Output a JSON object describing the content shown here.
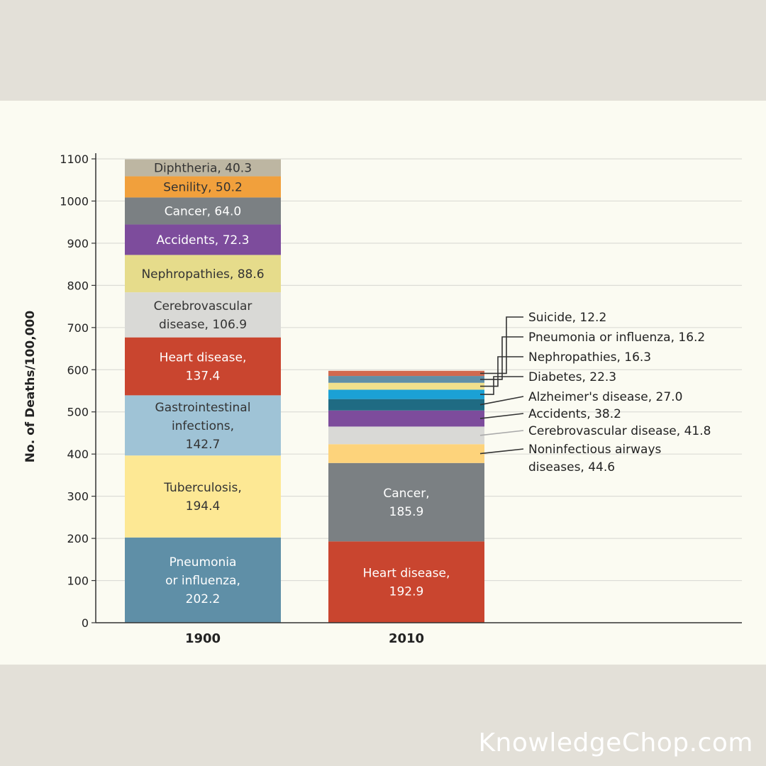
{
  "watermark": "KnowledgeChop.com",
  "chart_data": {
    "type": "bar",
    "stacked": true,
    "title": "",
    "xlabel": "",
    "ylabel": "No. of Deaths/100,000",
    "ylim": [
      0,
      1100
    ],
    "yticks": [
      0,
      100,
      200,
      300,
      400,
      500,
      600,
      700,
      800,
      900,
      1000,
      1100
    ],
    "grid": true,
    "categories": [
      "1900",
      "2010"
    ],
    "stacks": [
      {
        "category": "1900",
        "segments": [
          {
            "name": "Pneumonia or influenza",
            "value": 202.2,
            "label": [
              "Pneumonia",
              "or influenza,",
              "202.2"
            ],
            "color": "#5f8fa7",
            "text_color": "#ffffff"
          },
          {
            "name": "Tuberculosis",
            "value": 194.4,
            "label": [
              "Tuberculosis,",
              "194.4"
            ],
            "color": "#fde894",
            "text_color": "#333333"
          },
          {
            "name": "Gastrointestinal infections",
            "value": 142.7,
            "label": [
              "Gastrointestinal",
              "infections,",
              "142.7"
            ],
            "color": "#9fc3d6",
            "text_color": "#333333"
          },
          {
            "name": "Heart disease",
            "value": 137.4,
            "label": [
              "Heart disease,",
              "137.4"
            ],
            "color": "#c9452f",
            "text_color": "#ffffff"
          },
          {
            "name": "Cerebrovascular disease",
            "value": 106.9,
            "label": [
              "Cerebrovascular",
              "disease, 106.9"
            ],
            "color": "#d9d9d6",
            "text_color": "#333333"
          },
          {
            "name": "Nephropathies",
            "value": 88.6,
            "label": [
              "Nephropathies, 88.6"
            ],
            "color": "#e6dc8b",
            "text_color": "#333333"
          },
          {
            "name": "Accidents",
            "value": 72.3,
            "label": [
              "Accidents, 72.3"
            ],
            "color": "#7d4c9c",
            "text_color": "#ffffff"
          },
          {
            "name": "Cancer",
            "value": 64.0,
            "label": [
              "Cancer, 64.0"
            ],
            "color": "#7b8083",
            "text_color": "#ffffff"
          },
          {
            "name": "Senility",
            "value": 50.2,
            "label": [
              "Senility, 50.2"
            ],
            "color": "#f1a03c",
            "text_color": "#333333"
          },
          {
            "name": "Diphtheria",
            "value": 40.3,
            "label": [
              "Diphtheria, 40.3"
            ],
            "color": "#bdb6a2",
            "text_color": "#333333"
          }
        ]
      },
      {
        "category": "2010",
        "segments": [
          {
            "name": "Heart disease",
            "value": 192.9,
            "label": [
              "Heart disease,",
              "192.9"
            ],
            "color": "#c9452f",
            "text_color": "#ffffff"
          },
          {
            "name": "Cancer",
            "value": 185.9,
            "label": [
              "Cancer,",
              "185.9"
            ],
            "color": "#7b8083",
            "text_color": "#ffffff"
          },
          {
            "name": "Noninfectious airways diseases",
            "value": 44.6,
            "label": [
              "Noninfectious airways",
              "diseases, 44.6"
            ],
            "color": "#fdd37b",
            "outside": true
          },
          {
            "name": "Cerebrovascular disease",
            "value": 41.8,
            "label": [
              "Cerebrovascular disease, 41.8"
            ],
            "color": "#d9d9d6",
            "outside": true
          },
          {
            "name": "Accidents",
            "value": 38.2,
            "label": [
              "Accidents, 38.2"
            ],
            "color": "#7d4c9c",
            "outside": true
          },
          {
            "name": "Alzheimer's disease",
            "value": 27.0,
            "label": [
              "Alzheimer's disease, 27.0"
            ],
            "color": "#1f6b83",
            "outside": true
          },
          {
            "name": "Diabetes",
            "value": 22.3,
            "label": [
              "Diabetes, 22.3"
            ],
            "color": "#1ba1d5",
            "outside": true
          },
          {
            "name": "Nephropathies",
            "value": 16.3,
            "label": [
              "Nephropathies, 16.3"
            ],
            "color": "#f0e08c",
            "outside": true
          },
          {
            "name": "Pneumonia or influenza",
            "value": 16.2,
            "label": [
              "Pneumonia or influenza, 16.2"
            ],
            "color": "#5f8fa7",
            "outside": true
          },
          {
            "name": "Suicide",
            "value": 12.2,
            "label": [
              "Suicide, 12.2"
            ],
            "color": "#d0694f",
            "outside": true
          }
        ]
      }
    ]
  }
}
